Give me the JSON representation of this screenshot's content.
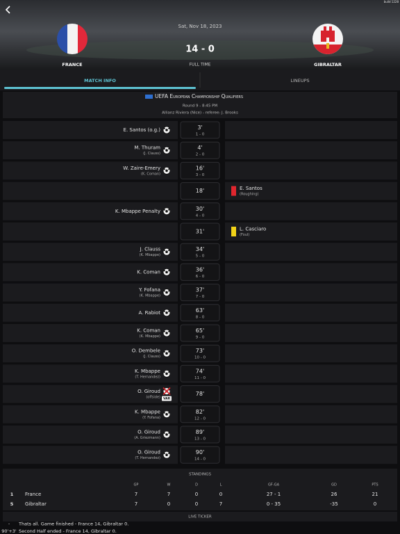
{
  "status_bar": {
    "build": "build 1228"
  },
  "match": {
    "date": "Sat, Nov 18, 2023",
    "score": "14 - 0",
    "status": "FULL TIME",
    "home_team": "FRANCE",
    "away_team": "GIBRALTAR"
  },
  "tabs": [
    "MATCH INFO",
    "LINEUPS"
  ],
  "competition": {
    "name": "UEFA European Championship Qualifiers",
    "round": "Round 9 - 8:45 PM",
    "venue": "Allianz Riviera (Nice) - referee: J. Brooks"
  },
  "events": [
    {
      "side": "home",
      "kind": "goal",
      "player": "E. Santos (o.g.)",
      "minute": "3'",
      "score": "1 - 0"
    },
    {
      "side": "home",
      "kind": "goal",
      "player": "M. Thuram",
      "detail": "(J. Clauss)",
      "minute": "4'",
      "score": "2 - 0"
    },
    {
      "side": "home",
      "kind": "goal",
      "player": "W. Zaire-Emery",
      "detail": "(K. Coman)",
      "minute": "16'",
      "score": "3 - 0"
    },
    {
      "side": "away",
      "kind": "red-card",
      "player": "E. Santos",
      "detail": "(Roughing)",
      "minute": "18'"
    },
    {
      "side": "home",
      "kind": "goal",
      "player": "K. Mbappe Penalty",
      "minute": "30'",
      "score": "4 - 0"
    },
    {
      "side": "away",
      "kind": "yellow-card",
      "player": "L. Casciaro",
      "detail": "(Foul)",
      "minute": "31'"
    },
    {
      "side": "home",
      "kind": "goal",
      "player": "J. Clauss",
      "detail": "(K. Mbappe)",
      "minute": "34'",
      "score": "5 - 0"
    },
    {
      "side": "home",
      "kind": "goal",
      "player": "K. Coman",
      "minute": "36'",
      "score": "6 - 0"
    },
    {
      "side": "home",
      "kind": "goal",
      "player": "Y. Fofana",
      "detail": "(K. Mbappe)",
      "minute": "37'",
      "score": "7 - 0"
    },
    {
      "side": "home",
      "kind": "goal",
      "player": "A. Rabiot",
      "minute": "63'",
      "score": "8 - 0"
    },
    {
      "side": "home",
      "kind": "goal",
      "player": "K. Coman",
      "detail": "(K. Mbappe)",
      "minute": "65'",
      "score": "9 - 0"
    },
    {
      "side": "home",
      "kind": "goal",
      "player": "O. Dembele",
      "detail": "(J. Clauss)",
      "minute": "73'",
      "score": "10 - 0"
    },
    {
      "side": "home",
      "kind": "goal",
      "player": "K. Mbappe",
      "detail": "(T. Hernandez)",
      "minute": "74'",
      "score": "11 - 0"
    },
    {
      "side": "home",
      "kind": "var",
      "player": "O. Giroud",
      "detail": "(offside)",
      "minute": "78'",
      "badge": "VAR"
    },
    {
      "side": "home",
      "kind": "goal",
      "player": "K. Mbappe",
      "detail": "(Y. Fofana)",
      "minute": "82'",
      "score": "12 - 0"
    },
    {
      "side": "home",
      "kind": "goal",
      "player": "O. Giroud",
      "detail": "(A. Griezmann)",
      "minute": "89'",
      "score": "13 - 0"
    },
    {
      "side": "home",
      "kind": "goal",
      "player": "O. Giroud",
      "detail": "(T. Hernandez)",
      "minute": "90'",
      "score": "14 - 0"
    }
  ],
  "standings": {
    "title": "STANDINGS",
    "columns": [
      "GP",
      "W",
      "D",
      "L",
      "GF-GA",
      "GD",
      "PTS"
    ],
    "rows": [
      {
        "rank": "1",
        "team": "France",
        "stats": [
          "7",
          "7",
          "0",
          "0",
          "27 - 1",
          "26",
          "21"
        ]
      },
      {
        "rank": "5",
        "team": "Gibraltar",
        "stats": [
          "7",
          "0",
          "0",
          "7",
          "0 - 35",
          "-35",
          "0"
        ]
      }
    ]
  },
  "live_ticker": {
    "title": "LIVE TICKER",
    "entries": [
      {
        "minute": "-",
        "text": "Thats all. Game finished - France 14, Gibraltar 0."
      },
      {
        "minute": "90'+3'",
        "text": "Second Half ended - France 14, Gibraltar 0."
      }
    ]
  }
}
